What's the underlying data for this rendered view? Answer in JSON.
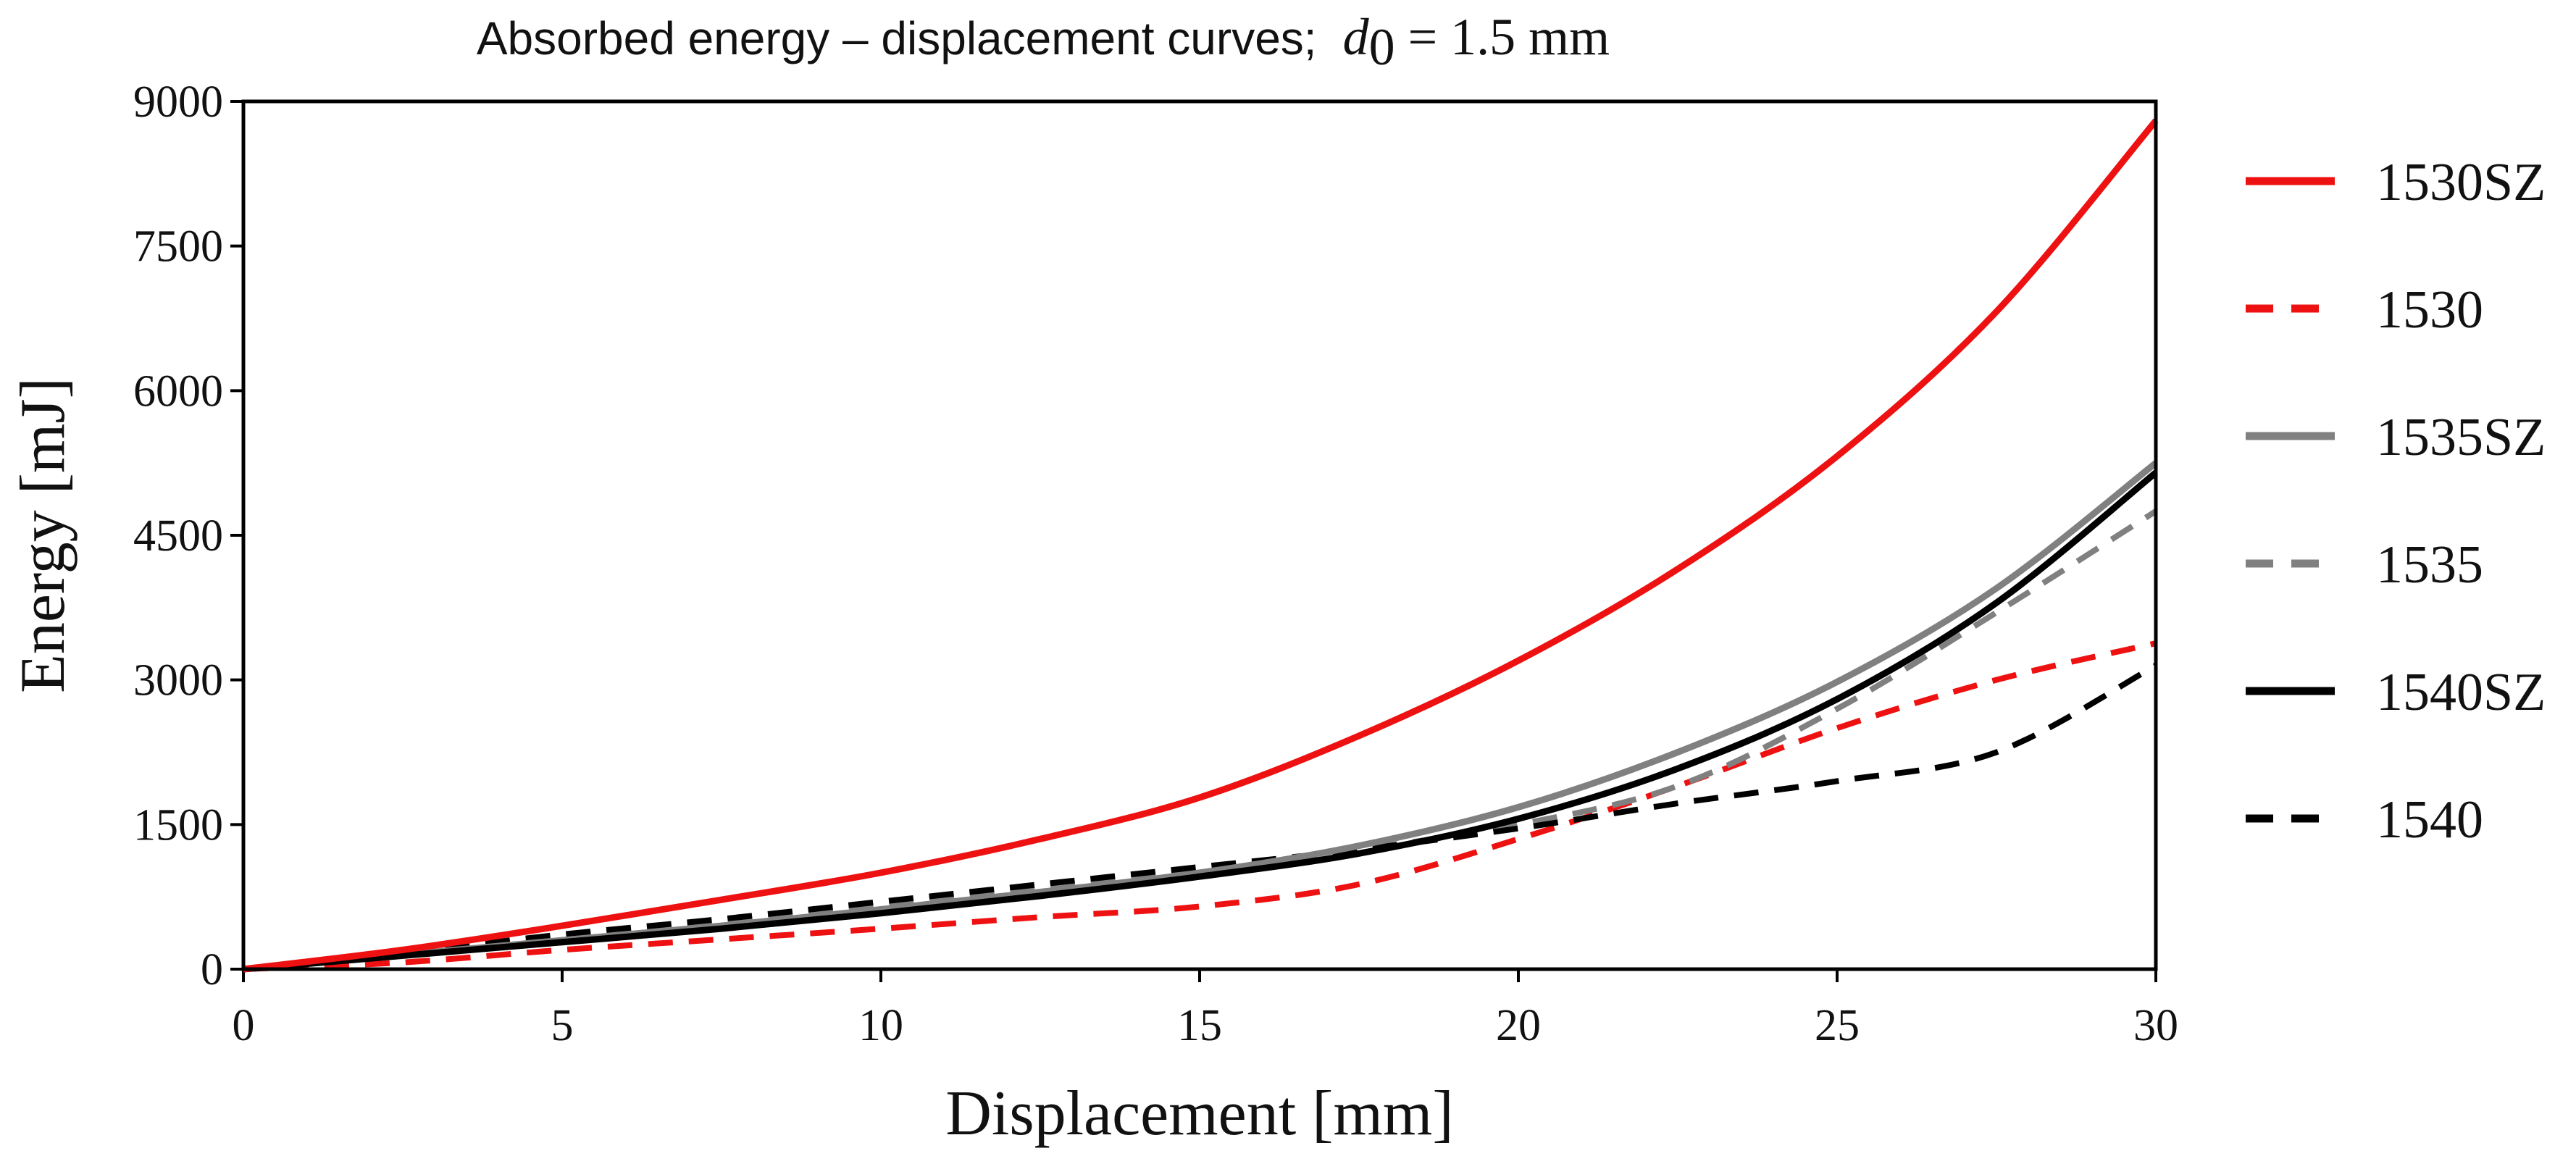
{
  "chart_data": {
    "type": "line",
    "title": "Absorbed energy – displacement curves;",
    "title_math": {
      "symbol": "d",
      "subscript": "0",
      "rest": " = 1.5 mm"
    },
    "xlabel": "Displacement [mm]",
    "ylabel": "Energy [mJ]",
    "xlim": [
      0,
      30
    ],
    "ylim": [
      0,
      9000
    ],
    "xticks": [
      0,
      5,
      10,
      15,
      20,
      25,
      30
    ],
    "yticks": [
      0,
      1500,
      3000,
      4500,
      6000,
      7500,
      9000
    ],
    "grid": false,
    "legend_position": "right",
    "series": [
      {
        "name": "1530SZ",
        "color": "#ee1111",
        "dash": "solid",
        "x": [
          0,
          2.5,
          5,
          7.5,
          10,
          12.5,
          15,
          17.5,
          20,
          22.5,
          25,
          27.5,
          30
        ],
        "y": [
          0,
          200,
          450,
          720,
          1000,
          1350,
          1780,
          2420,
          3200,
          4150,
          5320,
          6820,
          8800
        ]
      },
      {
        "name": "1530",
        "color": "#ee1111",
        "dash": "dashed",
        "x": [
          0,
          2.5,
          5,
          7.5,
          10,
          12.5,
          15,
          17.5,
          20,
          22.5,
          25,
          27.5,
          30
        ],
        "y": [
          0,
          70,
          200,
          310,
          420,
          540,
          650,
          880,
          1350,
          1900,
          2500,
          3000,
          3380
        ]
      },
      {
        "name": "1535SZ",
        "color": "#808080",
        "dash": "solid",
        "x": [
          0,
          2.5,
          5,
          7.5,
          10,
          12.5,
          15,
          17.5,
          20,
          22.5,
          25,
          27.5,
          30
        ],
        "y": [
          0,
          150,
          300,
          450,
          620,
          800,
          1000,
          1280,
          1680,
          2250,
          2980,
          3950,
          5250
        ]
      },
      {
        "name": "1535",
        "color": "#808080",
        "dash": "dashed",
        "x": [
          0,
          2.5,
          5,
          7.5,
          10,
          12.5,
          15,
          17.5,
          20,
          22.5,
          25,
          27.5,
          30
        ],
        "y": [
          0,
          170,
          340,
          500,
          680,
          860,
          1020,
          1240,
          1500,
          1900,
          2700,
          3700,
          4750
        ]
      },
      {
        "name": "1540SZ",
        "color": "#000000",
        "dash": "solid",
        "x": [
          0,
          2.5,
          5,
          7.5,
          10,
          12.5,
          15,
          17.5,
          20,
          22.5,
          25,
          27.5,
          30
        ],
        "y": [
          0,
          140,
          280,
          420,
          580,
          760,
          960,
          1200,
          1560,
          2080,
          2800,
          3800,
          5150
        ]
      },
      {
        "name": "1540",
        "color": "#000000",
        "dash": "dashed",
        "x": [
          0,
          2.5,
          5,
          7.5,
          10,
          12.5,
          15,
          17.5,
          20,
          22.5,
          25,
          27.5,
          30
        ],
        "y": [
          0,
          170,
          360,
          520,
          700,
          880,
          1060,
          1240,
          1460,
          1720,
          1950,
          2250,
          3150
        ]
      }
    ]
  }
}
